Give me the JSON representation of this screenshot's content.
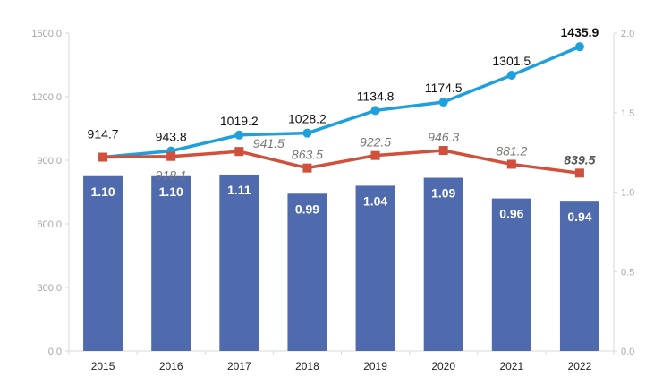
{
  "chart_data": {
    "type": "bar+line",
    "categories": [
      "2015",
      "2016",
      "2017",
      "2018",
      "2019",
      "2020",
      "2021",
      "2022"
    ],
    "left_axis": {
      "range": [
        0,
        1500
      ],
      "ticks": [
        "0.0",
        "300.0",
        "600.0",
        "900.0",
        "1200.0",
        "1500.0"
      ],
      "tick_values": [
        0,
        300,
        600,
        900,
        1200,
        1500
      ]
    },
    "right_axis": {
      "range": [
        0,
        2.0
      ],
      "ticks": [
        "0.0",
        "0.5",
        "1.0",
        "1.5",
        "2.0"
      ],
      "tick_values": [
        0,
        0.5,
        1.0,
        1.5,
        2.0
      ]
    },
    "series": [
      {
        "name": "bars",
        "type": "bar",
        "axis": "right",
        "color": "#4f6bae",
        "values": [
          1.1,
          1.1,
          1.11,
          0.99,
          1.04,
          1.09,
          0.96,
          0.94
        ],
        "labels": [
          "1.10",
          "1.10",
          "1.11",
          "0.99",
          "1.04",
          "1.09",
          "0.96",
          "0.94"
        ]
      },
      {
        "name": "blue line",
        "type": "line",
        "axis": "left",
        "color": "#1ea0dc",
        "values": [
          914.7,
          943.8,
          1019.2,
          1028.2,
          1134.8,
          1174.5,
          1301.5,
          1435.9
        ],
        "labels": [
          "914.7",
          "943.8",
          "1019.2",
          "1028.2",
          "1134.8",
          "1174.5",
          "1301.5",
          "1435.9"
        ]
      },
      {
        "name": "red line",
        "type": "line",
        "axis": "left",
        "color": "#d1503c",
        "values": [
          914.7,
          918.1,
          941.5,
          863.5,
          922.5,
          946.3,
          881.2,
          839.5
        ],
        "labels": [
          null,
          "918.1",
          "941.5",
          "863.5",
          "922.5",
          "946.3",
          "881.2",
          "839.5"
        ]
      }
    ],
    "grid": false,
    "title": "",
    "xlabel": "",
    "ylabel": ""
  }
}
